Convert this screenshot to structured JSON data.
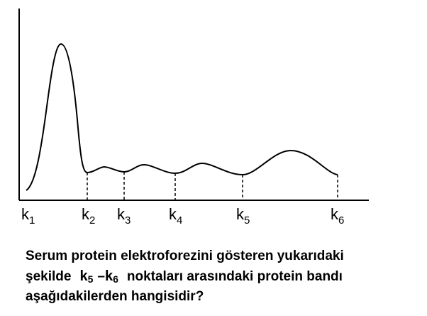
{
  "diagram": {
    "points": [
      {
        "letter": "k",
        "index": "1"
      },
      {
        "letter": "k",
        "index": "2"
      },
      {
        "letter": "k",
        "index": "3"
      },
      {
        "letter": "k",
        "index": "4"
      },
      {
        "letter": "k",
        "index": "5"
      },
      {
        "letter": "k",
        "index": "6"
      }
    ]
  },
  "question": {
    "line1": "Serum protein elektroforezini gösteren yukarıdaki",
    "line2_start": "şekilde",
    "k_from_letter": "k",
    "k_from_index": "5",
    "dash": "–",
    "k_to_letter": "k",
    "k_to_index": "6",
    "line2_end": "noktaları arasındaki protein bandı",
    "line3": "aşağıdakilerden hangisidir?"
  }
}
